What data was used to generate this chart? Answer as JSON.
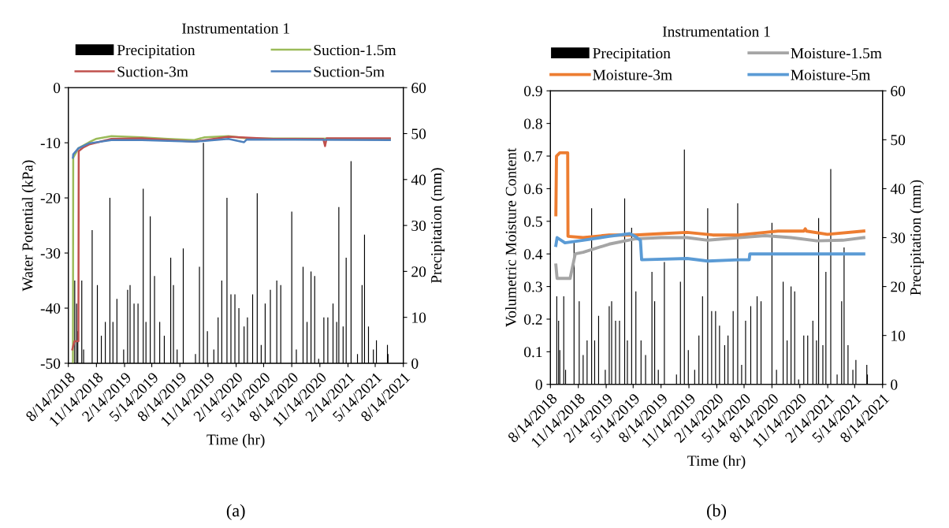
{
  "chart_data": [
    {
      "type": "line",
      "legend_title": "Instrumentation 1",
      "legend": "top",
      "xlabel": "Time (hr)",
      "ylabel": "Water Potential (kPa)",
      "y2label": "Precipitation (mm)",
      "annotations": [
        "(a)"
      ],
      "xlim": [
        "2018-08-14",
        "2021-08-14"
      ],
      "xticks": [
        {
          "value": "2018-08-14",
          "label": "8/14/2018"
        },
        {
          "value": "2018-11-14",
          "label": "11/14/2018"
        },
        {
          "value": "2019-02-14",
          "label": "2/14/2019"
        },
        {
          "value": "2019-05-14",
          "label": "5/14/2019"
        },
        {
          "value": "2019-08-14",
          "label": "8/14/2019"
        },
        {
          "value": "2019-11-14",
          "label": "11/14/2019"
        },
        {
          "value": "2020-02-14",
          "label": "2/14/2020"
        },
        {
          "value": "2020-05-14",
          "label": "5/14/2020"
        },
        {
          "value": "2020-08-14",
          "label": "8/14/2020"
        },
        {
          "value": "2020-11-14",
          "label": "11/14/2020"
        },
        {
          "value": "2021-02-14",
          "label": "2/14/2021"
        },
        {
          "value": "2021-05-14",
          "label": "5/14/2021"
        },
        {
          "value": "2021-08-14",
          "label": "8/14/2021"
        }
      ],
      "ylim": [
        -50,
        0
      ],
      "yticks": [
        -50,
        -40,
        -30,
        -20,
        -10,
        0
      ],
      "y2lim": [
        0,
        60
      ],
      "y2ticks": [
        0,
        10,
        20,
        30,
        40,
        50,
        60
      ],
      "line_style": "solid",
      "series": [
        {
          "name": "Precipitation",
          "type": "bar",
          "axis": "y2",
          "color": "#000000",
          "x": [
            "2018-09-04",
            "2018-09-10",
            "2018-09-14",
            "2018-09-27",
            "2018-10-03",
            "2018-10-31",
            "2018-11-17",
            "2018-11-30",
            "2018-12-13",
            "2018-12-28",
            "2019-01-07",
            "2019-01-20",
            "2019-02-11",
            "2019-02-24",
            "2019-03-04",
            "2019-03-17",
            "2019-03-30",
            "2019-04-16",
            "2019-04-25",
            "2019-05-09",
            "2019-05-23",
            "2019-06-09",
            "2019-06-24",
            "2019-07-15",
            "2019-07-24",
            "2019-08-05",
            "2019-08-25",
            "2019-10-04",
            "2019-10-17",
            "2019-10-30",
            "2019-11-12",
            "2019-12-03",
            "2019-12-17",
            "2019-12-29",
            "2020-01-15",
            "2020-01-28",
            "2020-02-10",
            "2020-02-23",
            "2020-03-11",
            "2020-03-22",
            "2020-04-08",
            "2020-04-23",
            "2020-05-06",
            "2020-05-19",
            "2020-06-05",
            "2020-06-26",
            "2020-07-09",
            "2020-08-14",
            "2020-08-29",
            "2020-09-20",
            "2020-10-03",
            "2020-10-16",
            "2020-10-28",
            "2020-11-10",
            "2020-11-27",
            "2020-12-10",
            "2020-12-27",
            "2021-01-08",
            "2021-01-15",
            "2021-01-29",
            "2021-02-08",
            "2021-02-24",
            "2021-03-17",
            "2021-04-01",
            "2021-04-09",
            "2021-04-22",
            "2021-05-08",
            "2021-05-18",
            "2021-06-23",
            "2021-06-25"
          ],
          "values": [
            18,
            13,
            7,
            18,
            3,
            29,
            17,
            6,
            9,
            36,
            9,
            14,
            3,
            16,
            17,
            13,
            13,
            38,
            9,
            32,
            19,
            9,
            6,
            23,
            17,
            3,
            25,
            2,
            21,
            48,
            7,
            3,
            10,
            18,
            36,
            15,
            15,
            12,
            8,
            10,
            15,
            37,
            4,
            13,
            16,
            18,
            17,
            33,
            3,
            21,
            9,
            20,
            19,
            1,
            10,
            10,
            13,
            9,
            34,
            8,
            23,
            44,
            2,
            17,
            28,
            8,
            3,
            5,
            4,
            2
          ]
        },
        {
          "name": "Suction-1.5m",
          "color": "#9bbb59",
          "x": [
            "2018-08-29",
            "2018-08-30",
            "2018-09-16",
            "2018-10-21",
            "2018-11-12",
            "2019-01-02",
            "2019-04-11",
            "2019-07-06",
            "2019-09-30",
            "2019-11-03",
            "2020-01-20",
            "2020-03-20",
            "2021-07-01"
          ],
          "values": [
            -50,
            -12.7,
            -11,
            -9.9,
            -9.3,
            -8.8,
            -9.0,
            -9.3,
            -9.5,
            -9.0,
            -8.8,
            -9.2,
            -9.3
          ]
        },
        {
          "name": "Suction-3m",
          "color": "#c0504d",
          "x": [
            "2018-08-27",
            "2018-09-03",
            "2018-09-16",
            "2018-09-17",
            "2018-10-03",
            "2018-10-21",
            "2019-01-02",
            "2019-04-11",
            "2019-09-30",
            "2020-01-20",
            "2020-06-14",
            "2020-11-25",
            "2020-12-01",
            "2020-12-06",
            "2021-07-01"
          ],
          "values": [
            -47.5,
            -46,
            -46,
            -11.5,
            -10.8,
            -10.3,
            -9.3,
            -9.2,
            -9.8,
            -8.9,
            -9.3,
            -9.3,
            -10.6,
            -9.2,
            -9.2
          ]
        },
        {
          "name": "Suction-5m",
          "color": "#4f81bd",
          "x": [
            "2018-08-29",
            "2018-08-30",
            "2018-09-16",
            "2018-10-21",
            "2019-01-02",
            "2019-04-11",
            "2019-09-30",
            "2020-01-20",
            "2020-03-11",
            "2020-03-20",
            "2021-07-01"
          ],
          "values": [
            -12.7,
            -12.1,
            -11,
            -10.1,
            -9.5,
            -9.5,
            -9.8,
            -9.3,
            -9.9,
            -9.4,
            -9.5
          ]
        }
      ]
    },
    {
      "type": "line",
      "legend_title": "Instrumentation 1",
      "legend": "top",
      "xlabel": "Time (hr)",
      "ylabel": "Volumetric Moisture Content",
      "y2label": "Precipitation (mm)",
      "annotations": [
        "(b)"
      ],
      "xlim": [
        "2018-08-14",
        "2021-08-14"
      ],
      "xticks": [
        {
          "value": "2018-08-14",
          "label": "8/14/2018"
        },
        {
          "value": "2018-11-14",
          "label": "11/14/2018"
        },
        {
          "value": "2019-02-14",
          "label": "2/14/2019"
        },
        {
          "value": "2019-05-14",
          "label": "5/14/2019"
        },
        {
          "value": "2019-08-14",
          "label": "8/14/2019"
        },
        {
          "value": "2019-11-14",
          "label": "11/14/2019"
        },
        {
          "value": "2020-02-14",
          "label": "2/14/2020"
        },
        {
          "value": "2020-05-14",
          "label": "5/14/2020"
        },
        {
          "value": "2020-08-14",
          "label": "8/14/2020"
        },
        {
          "value": "2020-11-14",
          "label": "11/14/2020"
        },
        {
          "value": "2021-02-14",
          "label": "2/14/2021"
        },
        {
          "value": "2021-05-14",
          "label": "5/14/2021"
        },
        {
          "value": "2021-08-14",
          "label": "8/14/2021"
        }
      ],
      "ylim": [
        0,
        0.9
      ],
      "yticks": [
        {
          "value": 0,
          "label": "0"
        },
        {
          "value": 0.1,
          "label": "0.1"
        },
        {
          "value": 0.2,
          "label": "0.2"
        },
        {
          "value": 0.3,
          "label": "0.3"
        },
        {
          "value": 0.4,
          "label": "0.4"
        },
        {
          "value": 0.5,
          "label": "0.5"
        },
        {
          "value": 0.6,
          "label": "0.6"
        },
        {
          "value": 0.7,
          "label": "0.7"
        },
        {
          "value": 0.8,
          "label": "0.8"
        },
        {
          "value": 0.9,
          "label": "0.9"
        }
      ],
      "y2lim": [
        0,
        60
      ],
      "y2ticks": [
        0,
        10,
        20,
        30,
        40,
        50,
        60
      ],
      "line_style": "solid",
      "series": [
        {
          "name": "Precipitation",
          "type": "bar",
          "axis": "y2",
          "color": "#000000",
          "x": [
            "2018-09-04",
            "2018-09-10",
            "2018-09-14",
            "2018-09-27",
            "2018-10-03",
            "2018-10-31",
            "2018-11-17",
            "2018-11-30",
            "2018-12-13",
            "2018-12-28",
            "2019-01-07",
            "2019-01-20",
            "2019-02-11",
            "2019-02-24",
            "2019-03-04",
            "2019-03-17",
            "2019-03-30",
            "2019-04-16",
            "2019-04-25",
            "2019-05-09",
            "2019-05-23",
            "2019-06-09",
            "2019-06-24",
            "2019-07-15",
            "2019-07-24",
            "2019-08-05",
            "2019-08-25",
            "2019-10-04",
            "2019-10-17",
            "2019-10-30",
            "2019-11-12",
            "2019-12-03",
            "2019-12-17",
            "2019-12-29",
            "2020-01-15",
            "2020-01-28",
            "2020-02-10",
            "2020-02-23",
            "2020-03-11",
            "2020-03-22",
            "2020-04-08",
            "2020-04-23",
            "2020-05-06",
            "2020-05-19",
            "2020-06-05",
            "2020-06-26",
            "2020-07-09",
            "2020-08-14",
            "2020-08-29",
            "2020-09-20",
            "2020-10-03",
            "2020-10-16",
            "2020-10-28",
            "2020-11-10",
            "2020-11-27",
            "2020-12-10",
            "2020-12-27",
            "2021-01-08",
            "2021-01-15",
            "2021-01-29",
            "2021-02-08",
            "2021-02-24",
            "2021-03-17",
            "2021-04-01",
            "2021-04-09",
            "2021-04-22",
            "2021-05-08",
            "2021-05-18",
            "2021-06-23",
            "2021-06-25"
          ],
          "values": [
            18,
            13,
            7,
            18,
            3,
            29,
            17,
            6,
            9,
            36,
            9,
            14,
            3,
            16,
            17,
            13,
            13,
            38,
            9,
            32,
            19,
            9,
            6,
            23,
            17,
            3,
            25,
            2,
            21,
            48,
            7,
            3,
            10,
            18,
            36,
            15,
            15,
            12,
            8,
            10,
            15,
            37,
            4,
            13,
            16,
            18,
            17,
            33,
            3,
            21,
            9,
            20,
            19,
            1,
            10,
            10,
            13,
            9,
            34,
            8,
            23,
            44,
            2,
            17,
            28,
            8,
            3,
            5,
            4,
            2
          ]
        },
        {
          "name": "Moisture-1.5m",
          "color": "#a5a5a5",
          "x": [
            "2018-09-01",
            "2018-09-05",
            "2018-10-18",
            "2018-11-04",
            "2018-11-30",
            "2019-02-24",
            "2019-05-20",
            "2019-08-14",
            "2019-11-08",
            "2020-01-15",
            "2020-04-27",
            "2020-07-22",
            "2020-10-16",
            "2021-01-09",
            "2021-04-05",
            "2021-06-13"
          ],
          "values": [
            0.366,
            0.325,
            0.325,
            0.4,
            0.405,
            0.43,
            0.446,
            0.45,
            0.45,
            0.442,
            0.45,
            0.456,
            0.45,
            0.44,
            0.442,
            0.45
          ]
        },
        {
          "name": "Moisture-3m",
          "color": "#ed7d31",
          "x": [
            "2018-09-01",
            "2018-09-03",
            "2018-09-14",
            "2018-10-10",
            "2018-10-11",
            "2018-11-30",
            "2019-02-24",
            "2019-05-20",
            "2019-08-14",
            "2019-11-08",
            "2020-02-01",
            "2020-04-27",
            "2020-07-22",
            "2020-09-03",
            "2020-11-27",
            "2020-12-02",
            "2020-12-06",
            "2021-02-13",
            "2021-06-13"
          ],
          "values": [
            0.52,
            0.7,
            0.71,
            0.71,
            0.454,
            0.45,
            0.458,
            0.458,
            0.462,
            0.466,
            0.458,
            0.458,
            0.466,
            0.47,
            0.47,
            0.477,
            0.47,
            0.46,
            0.47
          ]
        },
        {
          "name": "Moisture-5m",
          "color": "#5b9bd5",
          "x": [
            "2018-09-01",
            "2018-09-05",
            "2018-10-01",
            "2018-11-30",
            "2019-02-24",
            "2019-05-03",
            "2019-05-20",
            "2019-06-07",
            "2019-06-11",
            "2019-11-08",
            "2020-01-15",
            "2020-04-27",
            "2020-05-31",
            "2020-06-02",
            "2021-06-13"
          ],
          "values": [
            0.426,
            0.45,
            0.434,
            0.442,
            0.454,
            0.462,
            0.454,
            0.442,
            0.382,
            0.386,
            0.378,
            0.382,
            0.382,
            0.4,
            0.4
          ]
        }
      ]
    }
  ]
}
